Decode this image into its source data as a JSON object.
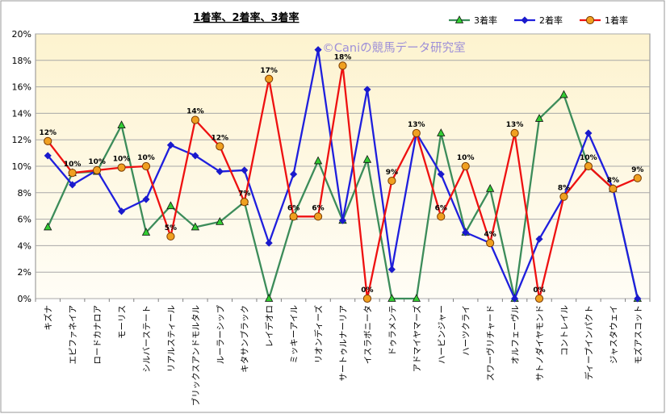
{
  "chart_data": {
    "type": "line",
    "title": "1着率、2着率、3着率",
    "watermark": "©Caniの競馬データ研究室",
    "xlabel": "",
    "ylabel": "",
    "ylim": [
      0,
      20
    ],
    "yticks": [
      0,
      2,
      4,
      6,
      8,
      10,
      12,
      14,
      16,
      18,
      20
    ],
    "ytick_labels": [
      "0%",
      "2%",
      "4%",
      "6%",
      "8%",
      "10%",
      "12%",
      "14%",
      "16%",
      "18%",
      "20%"
    ],
    "grid": true,
    "legend_position": "top-right",
    "categories": [
      "キズナ",
      "エピファネイア",
      "ロードカナロア",
      "モーリス",
      "シルバーステート",
      "リアルスティール",
      "ブリックスアンドモルタル",
      "ルーラーシップ",
      "キタサンブラック",
      "レイデオロ",
      "ミッキーアイル",
      "リオンディーズ",
      "サートゥルナーリア",
      "イスラボニータ",
      "ドゥラメンテ",
      "アドマイヤマーズ",
      "ハービンジャー",
      "ハーツクライ",
      "スワーヴリチャード",
      "オルフェーヴル",
      "サトノダイヤモンド",
      "コントレイル",
      "ディープインパクト",
      "ジャスタウェイ",
      "モズアスコット"
    ],
    "series": [
      {
        "name": "3着率",
        "color": "#3c8c5a",
        "marker": "triangle",
        "marker_color": "#33cc33",
        "values": [
          5.4,
          9.5,
          9.6,
          13.1,
          5.0,
          7.0,
          5.4,
          5.8,
          7.3,
          0.0,
          6.2,
          10.4,
          5.9,
          10.5,
          0.0,
          0.0,
          12.5,
          5.0,
          8.3,
          0.0,
          13.6,
          15.4,
          10.0,
          8.3,
          0.0
        ]
      },
      {
        "name": "2着率",
        "color": "#1f1fdd",
        "marker": "diamond",
        "marker_color": "#1a1acc",
        "values": [
          10.8,
          8.6,
          9.7,
          6.6,
          7.5,
          11.6,
          10.8,
          9.6,
          9.7,
          4.2,
          9.4,
          18.8,
          5.9,
          15.8,
          2.2,
          12.5,
          9.4,
          5.0,
          4.2,
          0.0,
          4.5,
          7.7,
          12.5,
          8.3,
          0.0
        ]
      },
      {
        "name": "1着率",
        "color": "#ee1111",
        "marker": "circle",
        "marker_color": "#f0a020",
        "values": [
          11.9,
          9.5,
          9.7,
          9.9,
          10.0,
          4.7,
          13.5,
          11.5,
          7.3,
          16.6,
          6.2,
          6.2,
          17.6,
          0.0,
          8.9,
          12.5,
          6.2,
          10.0,
          4.2,
          12.5,
          0.0,
          7.7,
          10.0,
          8.3,
          9.1
        ]
      }
    ],
    "data_labels": [
      "12%",
      "10%",
      "10%",
      "10%",
      "10%",
      "5%",
      "14%",
      "12%",
      "7%",
      "17%",
      "6%",
      "6%",
      "18%",
      "0%",
      "9%",
      "13%",
      "6%",
      "10%",
      "4%",
      "13%",
      "0%",
      "8%",
      "10%",
      "8%",
      "9%"
    ]
  }
}
